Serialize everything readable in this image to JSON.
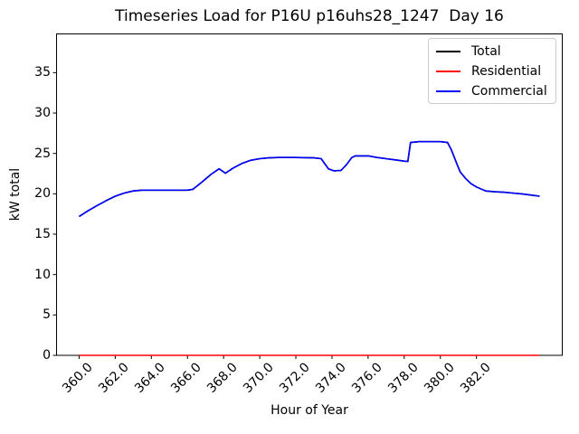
{
  "chart_data": {
    "type": "line",
    "title": "Timeseries Load for P16U p16uhs28_1247  Day 16",
    "xlabel": "Hour of Year",
    "ylabel": "kW total",
    "xlim": [
      358.75,
      386.75
    ],
    "ylim": [
      0,
      39.8
    ],
    "grid": false,
    "legend_position": "upper right",
    "x_ticks": {
      "values": [
        360,
        362,
        364,
        366,
        368,
        370,
        372,
        374,
        376,
        378,
        380,
        382
      ],
      "labels": [
        "360.0",
        "362.0",
        "364.0",
        "366.0",
        "368.0",
        "370.0",
        "372.0",
        "374.0",
        "376.0",
        "378.0",
        "380.0",
        "382.0"
      ]
    },
    "y_ticks": {
      "values": [
        0,
        5,
        10,
        15,
        20,
        25,
        30,
        35
      ],
      "labels": [
        "0",
        "5",
        "10",
        "15",
        "20",
        "25",
        "30",
        "35"
      ]
    },
    "x": [
      360,
      360.5,
      361,
      361.5,
      362,
      362.5,
      363,
      363.5,
      364,
      365,
      366,
      366.3,
      366.8,
      367.3,
      367.75,
      368.1,
      368.5,
      369,
      369.5,
      370,
      370.5,
      371,
      372,
      373,
      373.4,
      373.8,
      374.1,
      374.5,
      374.8,
      375.1,
      375.3,
      376,
      376.5,
      377,
      377.5,
      378,
      378.2,
      378.35,
      378.8,
      380,
      380.4,
      380.6,
      380.9,
      381.1,
      381.4,
      381.7,
      382,
      382.5,
      383,
      383.5,
      384,
      384.5,
      385,
      385.5
    ],
    "series": [
      {
        "name": "Total",
        "color": "#000000",
        "values": [
          17.2,
          17.9,
          18.55,
          19.15,
          19.7,
          20.1,
          20.35,
          20.45,
          20.45,
          20.45,
          20.45,
          20.55,
          21.45,
          22.4,
          23.1,
          22.55,
          23.15,
          23.75,
          24.15,
          24.35,
          24.45,
          24.5,
          24.5,
          24.45,
          24.35,
          23.1,
          22.85,
          22.9,
          23.6,
          24.5,
          24.7,
          24.7,
          24.5,
          24.35,
          24.2,
          24.05,
          24.0,
          26.35,
          26.45,
          26.45,
          26.35,
          25.5,
          23.8,
          22.7,
          21.9,
          21.25,
          20.85,
          20.35,
          20.25,
          20.2,
          20.1,
          20.0,
          19.85,
          19.7
        ]
      },
      {
        "name": "Residential",
        "color": "#ff0000",
        "values": [
          0,
          0,
          0,
          0,
          0,
          0,
          0,
          0,
          0,
          0,
          0,
          0,
          0,
          0,
          0,
          0,
          0,
          0,
          0,
          0,
          0,
          0,
          0,
          0,
          0,
          0,
          0,
          0,
          0,
          0,
          0,
          0,
          0,
          0,
          0,
          0,
          0,
          0,
          0,
          0,
          0,
          0,
          0,
          0,
          0,
          0,
          0,
          0,
          0,
          0,
          0,
          0,
          0,
          0
        ]
      },
      {
        "name": "Commercial",
        "color": "#0000ff",
        "values": [
          17.2,
          17.9,
          18.55,
          19.15,
          19.7,
          20.1,
          20.35,
          20.45,
          20.45,
          20.45,
          20.45,
          20.55,
          21.45,
          22.4,
          23.1,
          22.55,
          23.15,
          23.75,
          24.15,
          24.35,
          24.45,
          24.5,
          24.5,
          24.45,
          24.35,
          23.1,
          22.85,
          22.9,
          23.6,
          24.5,
          24.7,
          24.7,
          24.5,
          24.35,
          24.2,
          24.05,
          24.0,
          26.35,
          26.45,
          26.45,
          26.35,
          25.5,
          23.8,
          22.7,
          21.9,
          21.25,
          20.85,
          20.35,
          20.25,
          20.2,
          20.1,
          20.0,
          19.85,
          19.7
        ]
      }
    ]
  }
}
